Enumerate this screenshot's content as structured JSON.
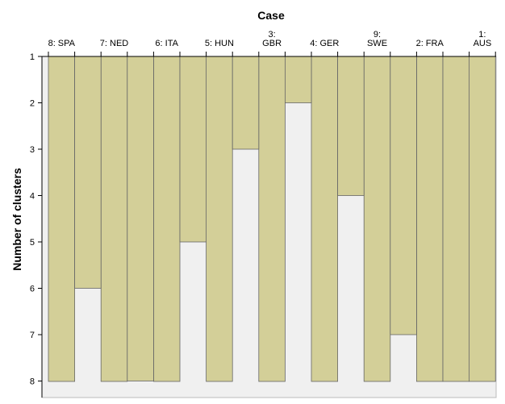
{
  "chart_data": {
    "type": "icicle",
    "title": "",
    "xlabel": "Case",
    "ylabel": "Number of clusters",
    "y_ticks": [
      "1",
      "2",
      "3",
      "4",
      "5",
      "6",
      "7",
      "8"
    ],
    "ylim": [
      1,
      8
    ],
    "cases": [
      {
        "label": [
          "8: SPA"
        ]
      },
      {
        "label": [
          "7: NED"
        ]
      },
      {
        "label": [
          "6: ITA"
        ]
      },
      {
        "label": [
          "5: HUN"
        ]
      },
      {
        "label": [
          "3:",
          "GBR"
        ]
      },
      {
        "label": [
          "4: GER"
        ]
      },
      {
        "label": [
          "9:",
          "SWE"
        ]
      },
      {
        "label": [
          "2: FRA"
        ]
      },
      {
        "label": [
          "1:",
          "AUS"
        ]
      }
    ],
    "joins": [
      {
        "after_case": 1,
        "from_clusters": 6
      },
      {
        "after_case": 2,
        "from_clusters": 8
      },
      {
        "after_case": 3,
        "from_clusters": 5
      },
      {
        "after_case": 4,
        "from_clusters": 3
      },
      {
        "after_case": 5,
        "from_clusters": 2
      },
      {
        "after_case": 6,
        "from_clusters": 4
      },
      {
        "after_case": 7,
        "from_clusters": 7
      },
      {
        "after_case": 8,
        "from_clusters": 9
      }
    ],
    "colors": {
      "bar": "#d3cf98",
      "plot_background": "#f0f0f0",
      "outline": "#666666"
    }
  }
}
